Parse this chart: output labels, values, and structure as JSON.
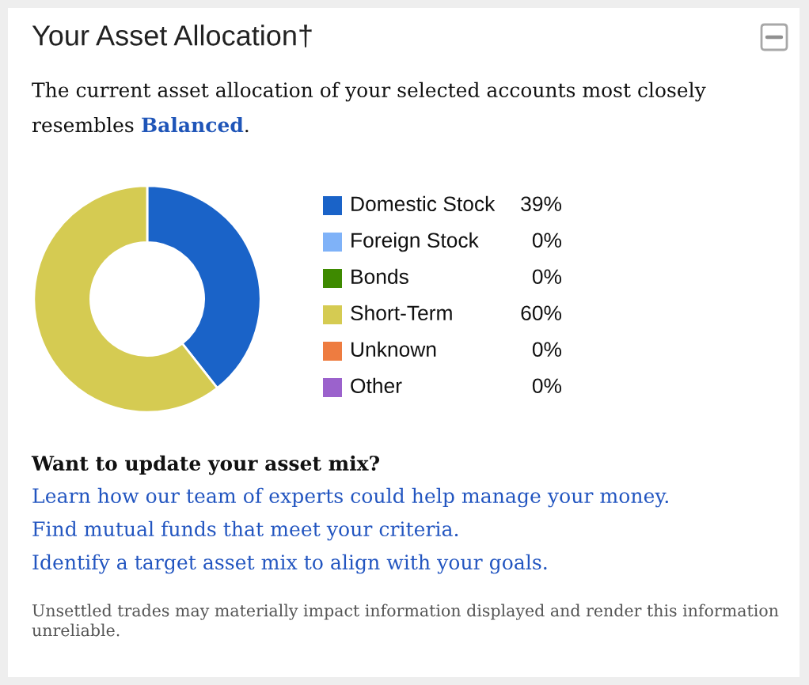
{
  "chart_data": {
    "type": "donut",
    "title": "Your Asset Allocation†",
    "subtitle": "The current asset allocation of your selected accounts most closely resembles Balanced.",
    "categories": [
      "Domestic Stock",
      "Foreign Stock",
      "Bonds",
      "Short-Term",
      "Unknown",
      "Other"
    ],
    "values": [
      39,
      0,
      0,
      60,
      0,
      0
    ],
    "value_labels": [
      "39%",
      "0%",
      "0%",
      "60%",
      "0%",
      "0%"
    ],
    "colors": [
      "#1a63c8",
      "#7fb2f8",
      "#3e8a00",
      "#d5cb52",
      "#ee7c40",
      "#9b62cc"
    ],
    "legend": "right",
    "annotations": [
      "Want to update your asset mix?",
      "Learn how our team of experts could help manage your money.",
      "Find mutual funds that meet your criteria.",
      "Identify a target asset mix to align with your goals.",
      "Unsettled trades may materially impact information displayed and render this information unreliable."
    ]
  }
}
